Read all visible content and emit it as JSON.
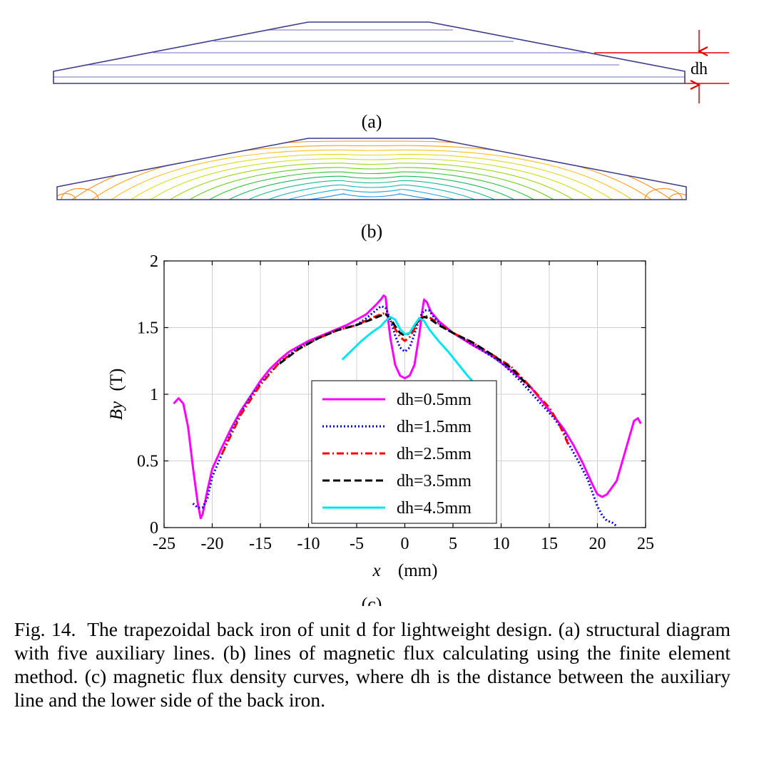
{
  "panel_a": {
    "label": "(a)",
    "dimension_label": "dh"
  },
  "panel_b": {
    "label": "(b)"
  },
  "panel_c": {
    "label": "(c)"
  },
  "colors": {
    "structure": "#3b3b8c",
    "aux_lines": "#8c8cd0",
    "dimension": "#e00000"
  },
  "chart_data": {
    "type": "line",
    "xlabel_var": "x",
    "xlabel_unit": "(mm)",
    "ylabel_var": "By",
    "ylabel_unit": "(T)",
    "xlim": [
      -25,
      25
    ],
    "ylim": [
      0,
      2
    ],
    "xticks": [
      -25,
      -20,
      -15,
      -10,
      -5,
      0,
      5,
      10,
      15,
      20,
      25
    ],
    "yticks": [
      0,
      0.5,
      1,
      1.5,
      2
    ],
    "grid": true,
    "legend_position": "center",
    "series": [
      {
        "name": "dh=0.5mm",
        "color": "#ff00ff",
        "dash": "solid",
        "x": [
          -24.0,
          -23.5,
          -23.0,
          -22.5,
          -22.0,
          -21.5,
          -21.2,
          -21.0,
          -20.5,
          -20.0,
          -19.0,
          -18.0,
          -17.0,
          -16.0,
          -15.0,
          -14.0,
          -13.0,
          -12.0,
          -10.0,
          -8.0,
          -6.0,
          -4.0,
          -3.0,
          -2.5,
          -2.2,
          -2.0,
          -1.8,
          -1.5,
          -1.0,
          -0.5,
          0.0,
          0.5,
          1.0,
          1.5,
          1.8,
          2.0,
          2.3,
          2.7,
          3.5,
          5.0,
          7.0,
          9.0,
          11.0,
          13.0,
          15.0,
          16.5,
          17.5,
          18.5,
          19.5,
          20.0,
          20.5,
          21.0,
          22.0,
          23.0,
          23.8,
          24.2,
          24.5
        ],
        "y": [
          0.93,
          0.97,
          0.93,
          0.75,
          0.45,
          0.18,
          0.07,
          0.1,
          0.28,
          0.44,
          0.6,
          0.75,
          0.88,
          0.99,
          1.1,
          1.19,
          1.26,
          1.32,
          1.4,
          1.46,
          1.52,
          1.6,
          1.67,
          1.71,
          1.74,
          1.73,
          1.6,
          1.42,
          1.22,
          1.14,
          1.12,
          1.14,
          1.22,
          1.45,
          1.62,
          1.71,
          1.69,
          1.62,
          1.55,
          1.46,
          1.37,
          1.29,
          1.18,
          1.06,
          0.88,
          0.74,
          0.62,
          0.48,
          0.32,
          0.25,
          0.23,
          0.25,
          0.35,
          0.6,
          0.8,
          0.82,
          0.78
        ]
      },
      {
        "name": "dh=1.5mm",
        "color": "#0000e0",
        "dash": "dotted",
        "x": [
          -22.0,
          -21.5,
          -21.0,
          -20.5,
          -20.0,
          -19.0,
          -18.0,
          -17.0,
          -16.0,
          -15.0,
          -13.0,
          -11.0,
          -9.0,
          -7.0,
          -5.0,
          -4.0,
          -3.0,
          -2.5,
          -2.0,
          -1.5,
          -1.0,
          -0.5,
          0.0,
          0.5,
          1.0,
          1.5,
          2.0,
          2.5,
          3.0,
          4.0,
          6.0,
          8.0,
          10.0,
          12.0,
          14.0,
          15.5,
          16.5,
          17.0,
          18.0,
          19.0,
          20.0,
          20.5,
          21.0,
          21.5,
          22.0
        ],
        "y": [
          0.18,
          0.15,
          0.15,
          0.22,
          0.38,
          0.55,
          0.72,
          0.86,
          0.98,
          1.08,
          1.24,
          1.35,
          1.42,
          1.48,
          1.52,
          1.57,
          1.63,
          1.66,
          1.65,
          1.56,
          1.44,
          1.35,
          1.32,
          1.35,
          1.45,
          1.57,
          1.63,
          1.63,
          1.58,
          1.5,
          1.42,
          1.33,
          1.24,
          1.1,
          0.94,
          0.82,
          0.72,
          0.63,
          0.5,
          0.36,
          0.16,
          0.09,
          0.05,
          0.04,
          0.01
        ]
      },
      {
        "name": "dh=2.5mm",
        "color": "#ff0000",
        "dash": "dashdot",
        "x": [
          -19.0,
          -17.0,
          -15.0,
          -13.0,
          -11.0,
          -9.0,
          -7.0,
          -5.0,
          -3.5,
          -2.5,
          -2.0,
          -1.5,
          -1.0,
          -0.5,
          0.0,
          0.5,
          1.0,
          1.5,
          2.0,
          2.5,
          3.5,
          5.0,
          7.0,
          9.0,
          11.0,
          13.0,
          15.0,
          16.0,
          17.0
        ],
        "y": [
          0.55,
          0.85,
          1.07,
          1.24,
          1.34,
          1.42,
          1.48,
          1.52,
          1.57,
          1.6,
          1.61,
          1.56,
          1.49,
          1.43,
          1.4,
          1.43,
          1.49,
          1.56,
          1.59,
          1.58,
          1.53,
          1.46,
          1.39,
          1.3,
          1.21,
          1.06,
          0.9,
          0.78,
          0.62
        ]
      },
      {
        "name": "dh=3.5mm",
        "color": "#000000",
        "dash": "dashed",
        "x": [
          -13.0,
          -11.0,
          -9.0,
          -7.0,
          -5.0,
          -3.5,
          -2.5,
          -2.0,
          -1.5,
          -1.0,
          -0.5,
          0.0,
          0.5,
          1.0,
          1.5,
          2.0,
          2.5,
          3.5,
          5.0,
          7.0,
          9.0,
          11.0,
          13.0
        ],
        "y": [
          1.23,
          1.34,
          1.42,
          1.48,
          1.52,
          1.56,
          1.59,
          1.6,
          1.57,
          1.51,
          1.46,
          1.44,
          1.46,
          1.51,
          1.56,
          1.58,
          1.57,
          1.52,
          1.46,
          1.39,
          1.3,
          1.2,
          1.05
        ]
      },
      {
        "name": "dh=4.5mm",
        "color": "#00e5ee",
        "dash": "solid",
        "x": [
          -6.5,
          -5.5,
          -4.5,
          -3.5,
          -2.5,
          -2.0,
          -1.5,
          -1.0,
          -0.5,
          0.0,
          0.5,
          1.0,
          1.5,
          2.0,
          2.5,
          3.5,
          4.5,
          5.5,
          6.5,
          7.0
        ],
        "y": [
          1.26,
          1.33,
          1.4,
          1.46,
          1.51,
          1.55,
          1.58,
          1.56,
          1.49,
          1.45,
          1.46,
          1.52,
          1.57,
          1.55,
          1.49,
          1.4,
          1.32,
          1.23,
          1.14,
          1.1
        ]
      }
    ]
  },
  "caption": {
    "figure_number": "Fig. 14.",
    "text": "The trapezoidal back iron of unit d for lightweight design. (a) structural diagram with five auxiliary lines. (b) lines of magnetic flux calculating using the finite element method. (c) magnetic flux density curves, where dh is the distance between the auxiliary line and the lower side of the back iron."
  }
}
